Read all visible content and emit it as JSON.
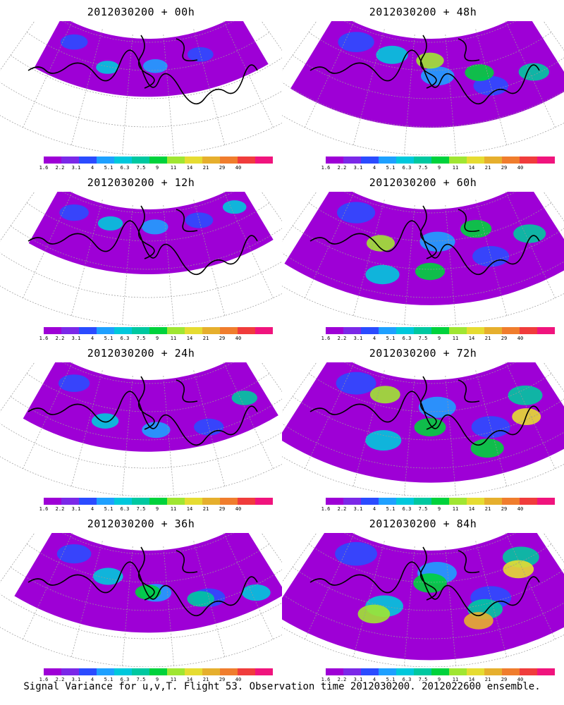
{
  "panels": [
    {
      "title": "2012030200 + 00h",
      "level": 0.1
    },
    {
      "title": "2012030200 + 48h",
      "level": 0.55
    },
    {
      "title": "2012030200 + 12h",
      "level": 0.2
    },
    {
      "title": "2012030200 + 60h",
      "level": 0.65
    },
    {
      "title": "2012030200 + 24h",
      "level": 0.3
    },
    {
      "title": "2012030200 + 72h",
      "level": 0.75
    },
    {
      "title": "2012030200 + 36h",
      "level": 0.45
    },
    {
      "title": "2012030200 + 84h",
      "level": 0.85
    }
  ],
  "colorbar": {
    "colors": [
      "#9e00d6",
      "#7b28e8",
      "#2b4bff",
      "#1ea0ff",
      "#00c8dc",
      "#00c8a0",
      "#00d23c",
      "#a0e632",
      "#e6dc32",
      "#e6af2d",
      "#f07d2d",
      "#f03c3c",
      "#f0147d"
    ],
    "labels": [
      "1.6",
      "2.2",
      "3.1",
      "4",
      "5.1",
      "6.3",
      "7.5",
      "9",
      "11",
      "14",
      "21",
      "29",
      "40"
    ]
  },
  "footer": "Signal Variance for u,v,T. Flight 53. Observation time 2012030200. 2012022600 ensemble."
}
